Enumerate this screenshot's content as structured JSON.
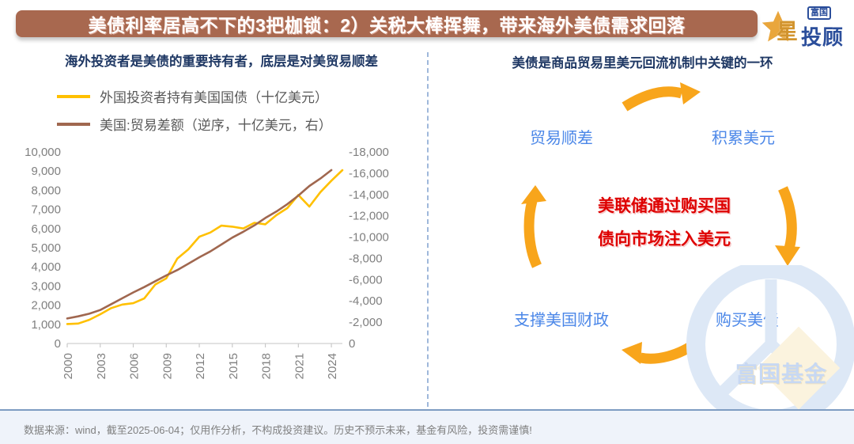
{
  "header": {
    "title": "美债利率居高不下的3把枷锁：2）关税大棒挥舞，带来海外美债需求回落",
    "logo": {
      "brand_box": "富国",
      "brand_star_char": "星",
      "brand_main": "投顾"
    }
  },
  "left_panel": {
    "title": "海外投资者是美债的重要持有者，底层是对美贸易顺差",
    "legend": [
      {
        "label": "外国投资者持有美国国债（十亿美元）"
      },
      {
        "label": "美国:贸易差额（逆序，十亿美元，右）"
      }
    ]
  },
  "chart_data": {
    "type": "line",
    "title": "海外投资者是美债的重要持有者，底层是对美贸易顺差",
    "x_range": [
      2000,
      2025
    ],
    "x_tick_years": [
      2000,
      2003,
      2006,
      2009,
      2012,
      2015,
      2018,
      2021,
      2024
    ],
    "left_axis": {
      "bottom": 0,
      "top": 10000,
      "ticks": [
        "0",
        "1,000",
        "2,000",
        "3,000",
        "4,000",
        "5,000",
        "6,000",
        "7,000",
        "8,000",
        "9,000",
        "10,000"
      ]
    },
    "right_axis": {
      "bottom": 0,
      "top": -18000,
      "ticks": [
        "0",
        "-2,000",
        "-4,000",
        "-6,000",
        "-8,000",
        "-10,000",
        "-12,000",
        "-14,000",
        "-16,000",
        "-18,000"
      ]
    },
    "grid": false,
    "legend_position": "top-left",
    "series": [
      {
        "name": "外国投资者持有美国国债（十亿美元）",
        "axis": "left",
        "color": "#FFC000",
        "start_year": 2000,
        "values": [
          1015,
          1040,
          1235,
          1523,
          1849,
          2034,
          2103,
          2353,
          3077,
          3400,
          4435,
          4912,
          5573,
          5793,
          6154,
          6100,
          6004,
          6300,
          6225,
          6700,
          7071,
          7750,
          7150,
          7900,
          8500,
          9050
        ]
      },
      {
        "name": "美国:贸易差额（逆序，十亿美元，右）",
        "axis": "right",
        "color": "#A0674F",
        "start_year": 2000,
        "values": [
          -2350,
          -2550,
          -2800,
          -3150,
          -3700,
          -4250,
          -4800,
          -5300,
          -5850,
          -6400,
          -6900,
          -7500,
          -8100,
          -8650,
          -9300,
          -9950,
          -10500,
          -11100,
          -11800,
          -12400,
          -13100,
          -13900,
          -14800,
          -15500,
          -16300
        ]
      }
    ]
  },
  "right_panel": {
    "title": "美债是商品贸易里美元回流机制中关键的一环",
    "nodes": {
      "top_left": "贸易顺差",
      "top_right": "积累美元",
      "bottom_left": "支撑美国财政",
      "bottom_right": "购买美债"
    },
    "center_note_line1": "美联储通过购买国",
    "center_note_line2": "债向市场注入美元",
    "watermark_text": "富国基金"
  },
  "footer": {
    "text": "数据来源：wind，截至2025-06-04；仅用作分析，不构成投资建议。历史不预示未来，基金有风险，投资需谨慎!"
  },
  "colors": {
    "title_bar_bg": "#A8684F",
    "navy": "#1F3864",
    "gray_text": "#595959",
    "axis_text": "#7F7F7F",
    "yellow": "#FFC000",
    "brown": "#A0674F",
    "orange": "#F8A51B",
    "blue": "#4B87E8",
    "red": "#DE0000",
    "footer_bg": "#EFF3FA",
    "footer_text": "#808080",
    "divider": "#9FB8DB",
    "watermark_blue": "#DDE8F6",
    "watermark_gold": "#FBF3DE",
    "logo_navy": "#2B4E9B",
    "logo_gold": "#D2942E"
  }
}
